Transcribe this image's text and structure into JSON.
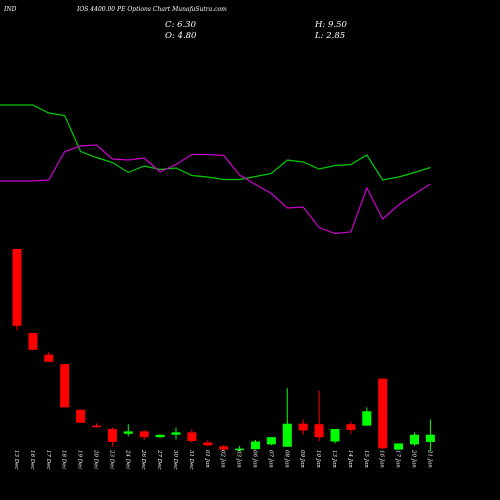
{
  "header": {
    "symbol": "IND",
    "title": "IOS 4400.00 PE Options Chart MunafaSutra.com",
    "ohlc": {
      "c": "C: 6.30",
      "h": "H: 9.50",
      "o": "O: 4.80",
      "l": "L: 2.85"
    }
  },
  "chart_data": {
    "type": "candlestick",
    "title": "IOS 4400.00 PE Options Chart MunafaSutra.com",
    "colors": {
      "up": "#00ff00",
      "down": "#ff0000",
      "background": "#000000",
      "line_green": "#00cc00",
      "line_magenta": "#cc00cc"
    },
    "categories": [
      "13 Dec",
      "16 Dec",
      "17 Dec",
      "18 Dec",
      "19 Dec",
      "20 Dec",
      "23 Dec",
      "24 Dec",
      "26 Dec",
      "27 Dec",
      "30 Dec",
      "31 Dec",
      "01 Jan",
      "02 Jan",
      "03 Jan",
      "06 Jan",
      "07 Jan",
      "08 Jan",
      "09 Jan",
      "10 Jan",
      "13 Jan",
      "14 Jan",
      "15 Jan",
      "16 Jan",
      "17 Jan",
      "20 Jan",
      "21 Jan"
    ],
    "candles": [
      {
        "o": 45.0,
        "h": 45.0,
        "l": 28.0,
        "c": 29.0
      },
      {
        "o": 27.5,
        "h": 27.5,
        "l": 24.0,
        "c": 24.0
      },
      {
        "o": 23.0,
        "h": 23.5,
        "l": 21.5,
        "c": 21.5
      },
      {
        "o": 21.0,
        "h": 21.0,
        "l": 12.0,
        "c": 12.0
      },
      {
        "o": 11.5,
        "h": 11.5,
        "l": 8.8,
        "c": 8.8
      },
      {
        "o": 8.2,
        "h": 8.7,
        "l": 7.8,
        "c": 8.0
      },
      {
        "o": 7.5,
        "h": 7.8,
        "l": 3.8,
        "c": 4.8
      },
      {
        "o": 6.5,
        "h": 8.5,
        "l": 6.0,
        "c": 7.0
      },
      {
        "o": 7.0,
        "h": 7.3,
        "l": 5.2,
        "c": 5.8
      },
      {
        "o": 5.8,
        "h": 6.3,
        "l": 5.6,
        "c": 6.3
      },
      {
        "o": 6.3,
        "h": 7.8,
        "l": 5.3,
        "c": 6.8
      },
      {
        "o": 6.8,
        "h": 7.5,
        "l": 4.6,
        "c": 5.0
      },
      {
        "o": 4.7,
        "h": 5.2,
        "l": 3.9,
        "c": 4.1
      },
      {
        "o": 3.9,
        "h": 4.2,
        "l": 3.0,
        "c": 3.2
      },
      {
        "o": 3.1,
        "h": 4.0,
        "l": 2.9,
        "c": 3.4
      },
      {
        "o": 3.3,
        "h": 5.2,
        "l": 3.2,
        "c": 4.9
      },
      {
        "o": 4.3,
        "h": 5.8,
        "l": 4.1,
        "c": 5.8
      },
      {
        "o": 3.8,
        "h": 16.0,
        "l": 3.8,
        "c": 8.6
      },
      {
        "o": 8.6,
        "h": 9.5,
        "l": 6.3,
        "c": 7.2
      },
      {
        "o": 8.5,
        "h": 15.5,
        "l": 5.0,
        "c": 5.8
      },
      {
        "o": 4.9,
        "h": 7.5,
        "l": 4.5,
        "c": 7.5
      },
      {
        "o": 8.5,
        "h": 9.0,
        "l": 6.5,
        "c": 7.3
      },
      {
        "o": 8.2,
        "h": 12.0,
        "l": 8.2,
        "c": 11.2
      },
      {
        "o": 18.0,
        "h": 18.0,
        "l": 3.3,
        "c": 3.5
      },
      {
        "o": 3.2,
        "h": 4.5,
        "l": 3.2,
        "c": 4.5
      },
      {
        "o": 4.3,
        "h": 6.8,
        "l": 4.0,
        "c": 6.3
      },
      {
        "o": 4.8,
        "h": 9.5,
        "l": 2.85,
        "c": 6.3
      }
    ],
    "price_ylim": [
      0,
      50
    ],
    "green_line_x": [
      "13 Dec",
      "16 Dec",
      "17 Dec",
      "18 Dec",
      "19 Dec",
      "20 Dec",
      "23 Dec",
      "24 Dec",
      "26 Dec",
      "27 Dec",
      "30 Dec",
      "31 Dec",
      "01 Jan",
      "02 Jan",
      "03 Jan",
      "06 Jan",
      "07 Jan",
      "08 Jan",
      "09 Jan",
      "10 Jan",
      "13 Jan",
      "14 Jan",
      "15 Jan",
      "16 Jan",
      "17 Jan",
      "20 Jan",
      "21 Jan"
    ],
    "green_line": [
      0.0,
      0.0,
      8.0,
      10.5,
      46.5,
      52.5,
      57.5,
      67.5,
      61.0,
      64.5,
      63.0,
      70.5,
      72.0,
      74.5,
      74.5,
      71.5,
      68.5,
      55.0,
      57.0,
      64.0,
      60.5,
      59.5,
      50.0,
      75.0,
      72.0,
      67.5,
      62.5
    ],
    "magenta_line": [
      76.0,
      76.0,
      75.0,
      46.5,
      41.0,
      40.0,
      54.0,
      55.0,
      53.0,
      67.0,
      59.5,
      49.5,
      49.5,
      50.5,
      70.0,
      79.5,
      88.5,
      103.0,
      102.0,
      122.5,
      128.5,
      127.0,
      83.0,
      114.0,
      100.0,
      89.0,
      79.0
    ],
    "line_ylim": [
      0,
      140
    ]
  }
}
